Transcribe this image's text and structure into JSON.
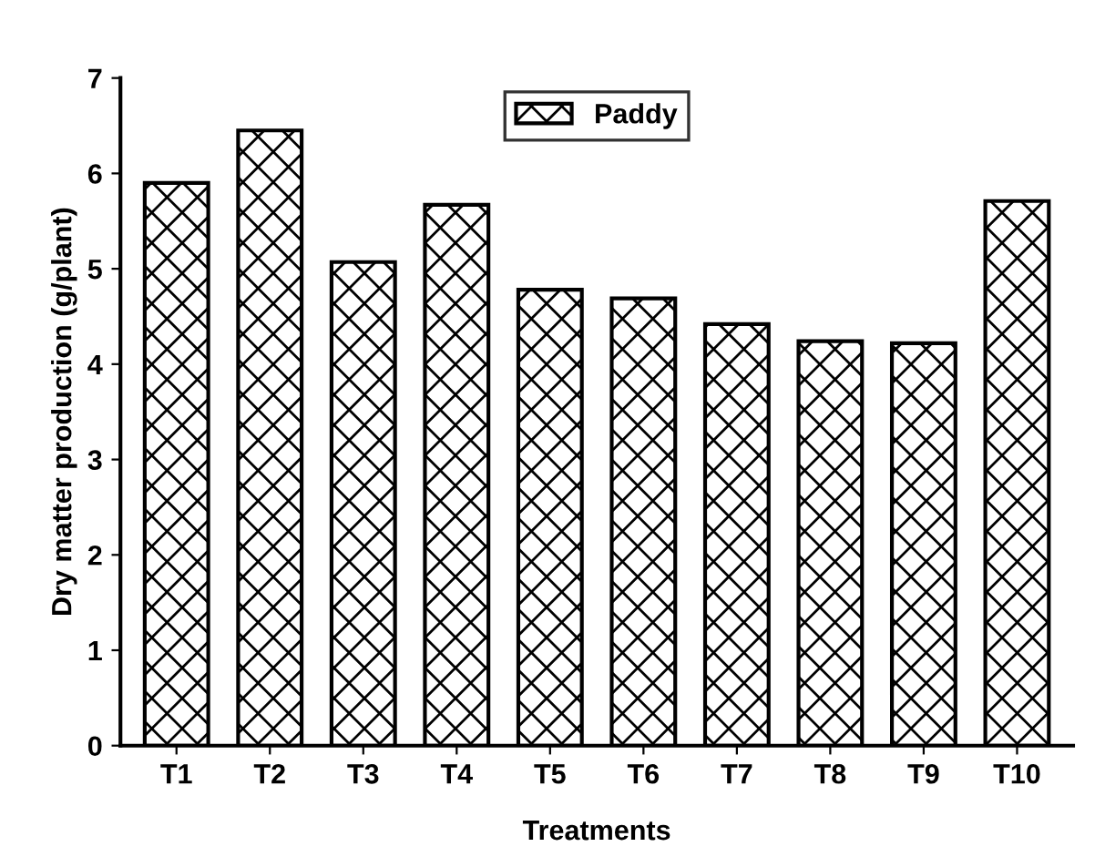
{
  "chart_data": {
    "type": "bar",
    "xlabel": "Treatments",
    "ylabel": "Dry matter production (g/plant)",
    "categories": [
      "T1",
      "T2",
      "T3",
      "T4",
      "T5",
      "T6",
      "T7",
      "T8",
      "T9",
      "T10"
    ],
    "series": [
      {
        "name": "Paddy",
        "color": "#000000",
        "values": [
          5.9,
          6.45,
          5.07,
          5.67,
          4.78,
          4.69,
          4.42,
          4.24,
          4.22,
          5.71
        ]
      }
    ],
    "ylim": [
      0,
      7
    ],
    "yticks": [
      0,
      1,
      2,
      3,
      4,
      5,
      6,
      7
    ],
    "grid": false,
    "legend": "top"
  }
}
